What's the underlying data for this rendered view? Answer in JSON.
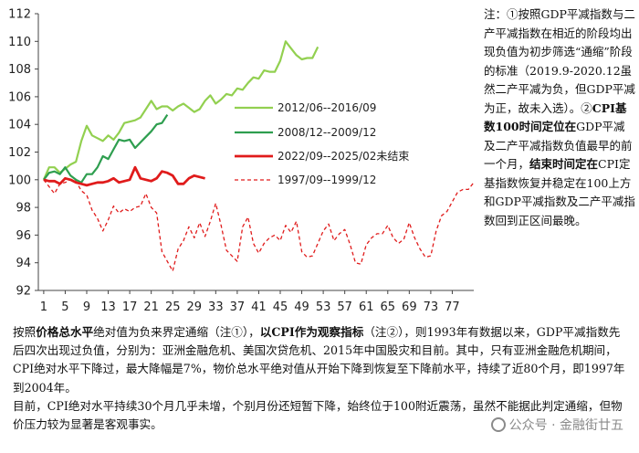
{
  "chart_data": {
    "type": "line",
    "xlim": [
      0,
      81
    ],
    "ylim": [
      92,
      112
    ],
    "xticks": [
      1,
      5,
      9,
      13,
      17,
      21,
      25,
      29,
      33,
      37,
      41,
      45,
      49,
      53,
      57,
      61,
      65,
      69,
      73,
      77
    ],
    "yticks": [
      92,
      94,
      96,
      98,
      100,
      102,
      104,
      106,
      108,
      110,
      112
    ],
    "grid": false,
    "legend_position": "upper-center",
    "series": [
      {
        "name": "2012/06--2016/09",
        "color": "#92d050",
        "dash": "solid",
        "x": [
          1,
          2,
          3,
          4,
          5,
          6,
          7,
          8,
          9,
          10,
          11,
          12,
          13,
          14,
          15,
          16,
          17,
          18,
          19,
          20,
          21,
          22,
          23,
          24,
          25,
          26,
          27,
          28,
          29,
          30,
          31,
          32,
          33,
          34,
          35,
          36,
          37,
          38,
          39,
          40,
          41,
          42,
          43,
          44,
          45,
          46,
          47,
          48,
          49,
          50,
          51,
          52
        ],
        "y": [
          100.0,
          100.9,
          100.9,
          100.5,
          100.8,
          101.1,
          101.3,
          102.8,
          103.9,
          103.2,
          103.0,
          102.8,
          103.2,
          102.9,
          103.4,
          104.1,
          104.2,
          104.3,
          104.5,
          105.1,
          105.7,
          105.1,
          105.3,
          105.3,
          105.0,
          105.3,
          105.5,
          105.2,
          104.9,
          105.1,
          105.7,
          106.1,
          105.5,
          105.8,
          106.2,
          106.1,
          106.6,
          106.5,
          107.0,
          107.4,
          107.3,
          107.9,
          107.8,
          107.8,
          108.6,
          110.0,
          109.5,
          109.0,
          108.7,
          108.8,
          108.8,
          109.6
        ]
      },
      {
        "name": "2008/12--2009/12",
        "color": "#2e9e4f",
        "dash": "solid",
        "x": [
          1,
          2,
          3,
          4,
          5,
          6,
          7,
          8,
          9,
          10,
          11,
          12,
          13,
          14,
          15,
          16,
          17,
          18,
          19,
          20,
          21,
          22,
          23,
          24
        ],
        "y": [
          100.0,
          100.5,
          100.6,
          100.4,
          100.9,
          100.3,
          100.0,
          99.8,
          100.4,
          100.4,
          100.9,
          101.7,
          101.5,
          102.2,
          102.9,
          102.8,
          102.9,
          102.3,
          102.7,
          103.1,
          103.5,
          104.0,
          104.1,
          104.7
        ]
      },
      {
        "name": "2022/09--2025/02未结束",
        "color": "#e01b1b",
        "dash": "solid",
        "x": [
          1,
          2,
          3,
          4,
          5,
          6,
          7,
          8,
          9,
          10,
          11,
          12,
          13,
          14,
          15,
          16,
          17,
          18,
          19,
          20,
          21,
          22,
          23,
          24,
          25,
          26,
          27,
          28,
          29,
          30,
          31
        ],
        "y": [
          100.0,
          99.9,
          99.9,
          99.7,
          100.1,
          100.0,
          99.8,
          99.7,
          99.6,
          99.7,
          99.8,
          99.8,
          99.9,
          100.1,
          99.8,
          99.9,
          100.0,
          100.9,
          100.1,
          100.0,
          99.9,
          100.1,
          100.6,
          100.5,
          100.3,
          99.7,
          99.7,
          100.1,
          100.3,
          100.2,
          100.1
        ]
      },
      {
        "name": "1997/09--1999/12",
        "color": "#e01b1b",
        "dash": "dashed",
        "x": [
          1,
          2,
          3,
          4,
          5,
          6,
          7,
          8,
          9,
          10,
          11,
          12,
          13,
          14,
          15,
          16,
          17,
          18,
          19,
          20,
          21,
          22,
          23,
          24,
          25,
          26,
          27,
          28,
          29,
          30,
          31,
          32,
          33,
          34,
          35,
          36,
          37,
          38,
          39,
          40,
          41,
          42,
          43,
          44,
          45,
          46,
          47,
          48,
          49,
          50,
          51,
          52,
          53,
          54,
          55,
          56,
          57,
          58,
          59,
          60,
          61,
          62,
          63,
          64,
          65,
          66,
          67,
          68,
          69,
          70,
          71,
          72,
          73,
          74,
          75,
          76,
          77,
          78,
          79,
          80,
          81
        ],
        "y": [
          100.0,
          99.5,
          99.0,
          99.7,
          99.8,
          100.0,
          99.9,
          99.2,
          98.9,
          97.8,
          97.2,
          96.3,
          97.1,
          98.1,
          97.6,
          97.9,
          97.7,
          98.0,
          98.1,
          99.0,
          98.0,
          97.6,
          94.8,
          94.1,
          93.4,
          95.0,
          95.6,
          96.6,
          95.8,
          96.9,
          95.9,
          97.0,
          98.3,
          96.7,
          94.9,
          94.5,
          94.1,
          96.6,
          97.3,
          95.4,
          94.7,
          95.4,
          95.8,
          96.0,
          95.6,
          96.7,
          96.2,
          97.0,
          94.8,
          94.4,
          94.5,
          95.4,
          96.3,
          96.8,
          95.6,
          96.1,
          96.4,
          95.3,
          94.0,
          93.9,
          95.3,
          95.8,
          96.1,
          96.1,
          96.7,
          95.8,
          95.4,
          95.7,
          96.9,
          95.8,
          95.0,
          94.4,
          94.5,
          96.3,
          97.4,
          97.7,
          98.4,
          99.1,
          99.3,
          99.3,
          99.8
        ]
      }
    ]
  },
  "note": {
    "p1": "注：①按照GDP平减指数与二产平减指数在相近的阶段均出现负值为初步筛选“通缩”阶段的标准（2019.9-2020.12虽然二产平减为负，但GDP平减为正，故未入选）。②",
    "p2_bold": "CPI基数100时间定位在",
    "p3": "GDP平减及二产平减指数负值最早的前一个月，",
    "p4_bold": "结束时间定在",
    "p5": "CPI定基指数恢复并稳定在100上方和GDP平减指数及二产平减指数回到正区间最晚。"
  },
  "body": {
    "s1": "按照",
    "s2_bold": "价格总水平",
    "s3": "绝对值为负来界定通缩（注①），",
    "s4_bold": "以CPI作为观察指标",
    "s5": "（注②），则1993年有数据以来，GDP平减指数先后四次出现过负值，分别为：亚洲金融危机、美国次贷危机、2015年中国股灾和目前。其中，只有亚洲金融危机期间，CPI绝对水平下降过，最大降幅是7%，物价总水平绝对值从开始下降到恢复至下降前水平，持续了近80个月，即1997年到2004年。",
    "s6": "目前，CPI绝对水平持续30个月几乎未增，个别月份还短暂下降，始终位于100附近震荡，虽然不能据此判定通缩，但物价压力较为显著是客观事实。"
  },
  "watermark": {
    "icon": "wechat-icon",
    "text": "公众号 · 金融街廿五"
  }
}
